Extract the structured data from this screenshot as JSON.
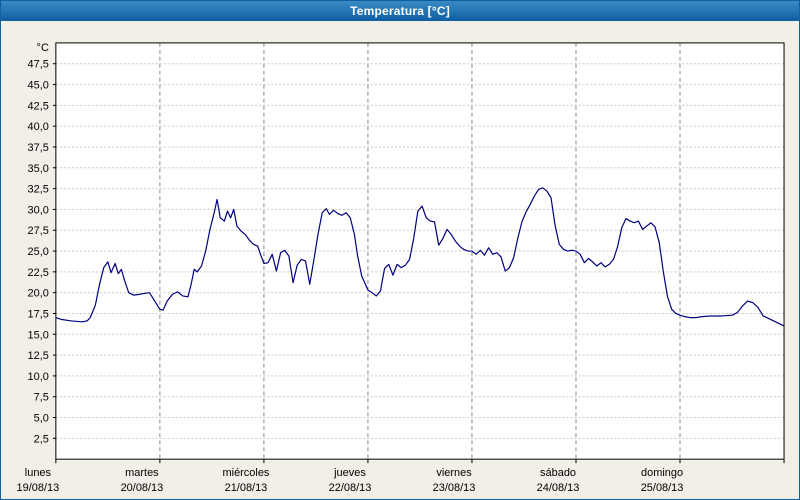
{
  "window": {
    "title": "Temperatura [°C]"
  },
  "chart_data": {
    "type": "line",
    "title": "Temperatura [°C]",
    "y_unit": "°C",
    "ylim": [
      0,
      50
    ],
    "ytick_step": 2.5,
    "ytick_labels": [
      "47,5",
      "45,0",
      "42,5",
      "40,0",
      "37,5",
      "35,0",
      "32,5",
      "30,0",
      "27,5",
      "25,0",
      "22,5",
      "20,0",
      "17,5",
      "15,0",
      "12,5",
      "10,0",
      "7,5",
      "5,0",
      "2,5"
    ],
    "x_range_days": [
      0,
      7
    ],
    "grid": true,
    "legend": "none",
    "days": [
      {
        "name": "lunes",
        "date": "19/08/13"
      },
      {
        "name": "martes",
        "date": "20/08/13"
      },
      {
        "name": "miércoles",
        "date": "21/08/13"
      },
      {
        "name": "jueves",
        "date": "22/08/13"
      },
      {
        "name": "viernes",
        "date": "23/08/13"
      },
      {
        "name": "sábado",
        "date": "24/08/13"
      },
      {
        "name": "domingo",
        "date": "25/08/13"
      }
    ],
    "series": [
      {
        "name": "Temperatura",
        "color": "#000080",
        "points": [
          [
            0.0,
            17.0
          ],
          [
            0.05,
            16.8
          ],
          [
            0.15,
            16.6
          ],
          [
            0.25,
            16.5
          ],
          [
            0.3,
            16.6
          ],
          [
            0.33,
            17.0
          ],
          [
            0.38,
            18.5
          ],
          [
            0.42,
            21.0
          ],
          [
            0.46,
            23.0
          ],
          [
            0.5,
            23.7
          ],
          [
            0.53,
            22.4
          ],
          [
            0.57,
            23.5
          ],
          [
            0.6,
            22.3
          ],
          [
            0.63,
            22.8
          ],
          [
            0.66,
            21.5
          ],
          [
            0.7,
            20.0
          ],
          [
            0.75,
            19.7
          ],
          [
            0.8,
            19.8
          ],
          [
            0.85,
            19.9
          ],
          [
            0.9,
            20.0
          ],
          [
            0.95,
            19.0
          ],
          [
            1.0,
            18.0
          ],
          [
            1.03,
            17.9
          ],
          [
            1.07,
            19.0
          ],
          [
            1.12,
            19.8
          ],
          [
            1.17,
            20.1
          ],
          [
            1.22,
            19.6
          ],
          [
            1.27,
            19.5
          ],
          [
            1.3,
            21.0
          ],
          [
            1.33,
            22.8
          ],
          [
            1.36,
            22.5
          ],
          [
            1.4,
            23.2
          ],
          [
            1.44,
            25.0
          ],
          [
            1.48,
            27.5
          ],
          [
            1.52,
            29.5
          ],
          [
            1.55,
            31.2
          ],
          [
            1.58,
            29.0
          ],
          [
            1.62,
            28.6
          ],
          [
            1.65,
            29.8
          ],
          [
            1.68,
            29.0
          ],
          [
            1.71,
            30.0
          ],
          [
            1.74,
            28.0
          ],
          [
            1.78,
            27.4
          ],
          [
            1.82,
            27.0
          ],
          [
            1.86,
            26.3
          ],
          [
            1.9,
            25.8
          ],
          [
            1.94,
            25.6
          ],
          [
            1.97,
            24.5
          ],
          [
            2.0,
            23.5
          ],
          [
            2.04,
            23.6
          ],
          [
            2.08,
            24.6
          ],
          [
            2.12,
            22.6
          ],
          [
            2.16,
            24.8
          ],
          [
            2.2,
            25.1
          ],
          [
            2.24,
            24.4
          ],
          [
            2.28,
            21.2
          ],
          [
            2.32,
            23.3
          ],
          [
            2.36,
            24.0
          ],
          [
            2.4,
            23.8
          ],
          [
            2.44,
            21.0
          ],
          [
            2.48,
            23.9
          ],
          [
            2.52,
            27.0
          ],
          [
            2.56,
            29.6
          ],
          [
            2.6,
            30.1
          ],
          [
            2.63,
            29.4
          ],
          [
            2.67,
            29.9
          ],
          [
            2.71,
            29.5
          ],
          [
            2.75,
            29.3
          ],
          [
            2.79,
            29.6
          ],
          [
            2.83,
            29.0
          ],
          [
            2.87,
            27.0
          ],
          [
            2.9,
            24.5
          ],
          [
            2.94,
            22.0
          ],
          [
            3.0,
            20.3
          ],
          [
            3.04,
            20.0
          ],
          [
            3.08,
            19.6
          ],
          [
            3.12,
            20.2
          ],
          [
            3.16,
            22.9
          ],
          [
            3.2,
            23.4
          ],
          [
            3.24,
            22.1
          ],
          [
            3.28,
            23.4
          ],
          [
            3.32,
            23.0
          ],
          [
            3.36,
            23.3
          ],
          [
            3.4,
            24.0
          ],
          [
            3.44,
            26.5
          ],
          [
            3.48,
            29.8
          ],
          [
            3.52,
            30.4
          ],
          [
            3.56,
            29.0
          ],
          [
            3.6,
            28.6
          ],
          [
            3.64,
            28.5
          ],
          [
            3.68,
            25.7
          ],
          [
            3.72,
            26.5
          ],
          [
            3.76,
            27.6
          ],
          [
            3.8,
            27.0
          ],
          [
            3.84,
            26.2
          ],
          [
            3.88,
            25.6
          ],
          [
            3.92,
            25.2
          ],
          [
            3.96,
            25.0
          ],
          [
            4.0,
            25.0
          ],
          [
            4.04,
            24.6
          ],
          [
            4.08,
            25.1
          ],
          [
            4.12,
            24.5
          ],
          [
            4.16,
            25.4
          ],
          [
            4.2,
            24.6
          ],
          [
            4.24,
            24.8
          ],
          [
            4.28,
            24.3
          ],
          [
            4.32,
            22.6
          ],
          [
            4.36,
            23.0
          ],
          [
            4.4,
            24.2
          ],
          [
            4.44,
            26.5
          ],
          [
            4.48,
            28.5
          ],
          [
            4.52,
            29.7
          ],
          [
            4.56,
            30.6
          ],
          [
            4.6,
            31.6
          ],
          [
            4.64,
            32.4
          ],
          [
            4.68,
            32.6
          ],
          [
            4.72,
            32.2
          ],
          [
            4.76,
            31.4
          ],
          [
            4.8,
            28.0
          ],
          [
            4.84,
            25.8
          ],
          [
            4.88,
            25.2
          ],
          [
            4.92,
            25.0
          ],
          [
            4.96,
            25.1
          ],
          [
            5.0,
            25.0
          ],
          [
            5.04,
            24.6
          ],
          [
            5.08,
            23.6
          ],
          [
            5.12,
            24.1
          ],
          [
            5.16,
            23.7
          ],
          [
            5.2,
            23.2
          ],
          [
            5.24,
            23.6
          ],
          [
            5.28,
            23.1
          ],
          [
            5.32,
            23.4
          ],
          [
            5.36,
            24.0
          ],
          [
            5.4,
            25.5
          ],
          [
            5.44,
            27.8
          ],
          [
            5.48,
            28.9
          ],
          [
            5.52,
            28.6
          ],
          [
            5.56,
            28.4
          ],
          [
            5.6,
            28.6
          ],
          [
            5.64,
            27.6
          ],
          [
            5.68,
            28.0
          ],
          [
            5.72,
            28.4
          ],
          [
            5.76,
            27.9
          ],
          [
            5.8,
            26.0
          ],
          [
            5.84,
            22.5
          ],
          [
            5.88,
            19.5
          ],
          [
            5.92,
            18.0
          ],
          [
            5.96,
            17.5
          ],
          [
            6.0,
            17.3
          ],
          [
            6.05,
            17.1
          ],
          [
            6.1,
            17.0
          ],
          [
            6.15,
            17.0
          ],
          [
            6.2,
            17.1
          ],
          [
            6.3,
            17.2
          ],
          [
            6.4,
            17.2
          ],
          [
            6.5,
            17.3
          ],
          [
            6.55,
            17.6
          ],
          [
            6.6,
            18.4
          ],
          [
            6.65,
            19.0
          ],
          [
            6.7,
            18.8
          ],
          [
            6.75,
            18.2
          ],
          [
            6.8,
            17.2
          ],
          [
            6.85,
            16.9
          ],
          [
            6.9,
            16.6
          ],
          [
            6.95,
            16.3
          ],
          [
            7.0,
            16.0
          ]
        ]
      }
    ],
    "colors": {
      "line": "#000080",
      "plot_bg": "#ffffff",
      "outer_bg": "#f1efe7",
      "titlebar": "#0d5fa2",
      "h_grid": "#c9c9c9",
      "v_grid": "#8a8a8a",
      "plot_border": "#000000"
    }
  }
}
